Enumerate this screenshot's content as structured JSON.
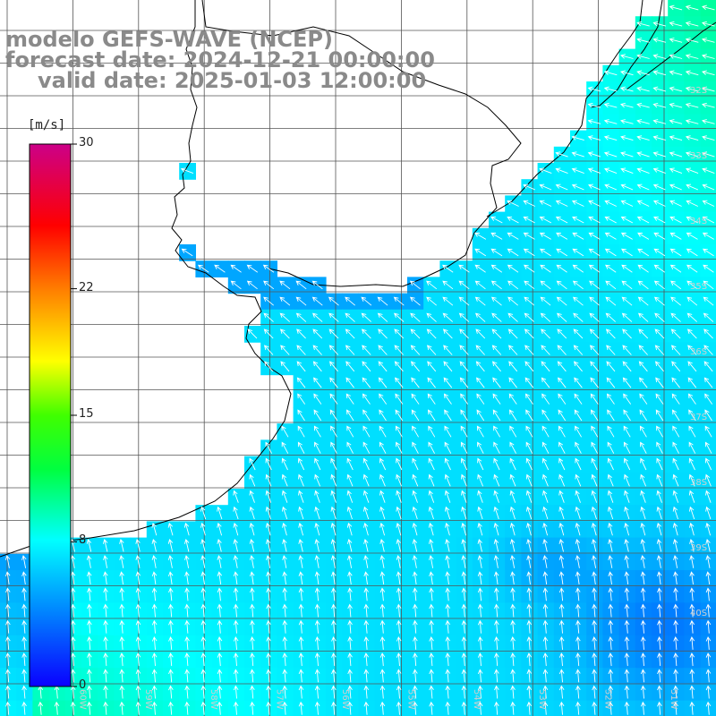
{
  "title": {
    "line1": "modelo GEFS-WAVE (NCEP)",
    "line2": "forecast date: 2024-12-21 00:00:00",
    "line3": "valid date: 2025-01-03 12:00:00"
  },
  "colorbar": {
    "unit": "[m/s]",
    "ticks": [
      {
        "label": "30",
        "value": 30
      },
      {
        "label": "22",
        "value": 22
      },
      {
        "label": "15",
        "value": 15
      },
      {
        "label": "8",
        "value": 8
      },
      {
        "label": "0",
        "value": 0
      }
    ],
    "colors": [
      "#0a00ff",
      "#00a0ff",
      "#00ffff",
      "#00ff00",
      "#ffff00",
      "#ff8000",
      "#ff0000",
      "#cc0088"
    ]
  },
  "lat_labels": [
    "32S",
    "33S",
    "34S",
    "35S",
    "36S",
    "37S",
    "38S",
    "39S",
    "40S"
  ],
  "lon_labels": [
    "60W",
    "59W",
    "58W",
    "57W",
    "56W",
    "55W",
    "54W",
    "53W",
    "52W",
    "51W"
  ]
}
